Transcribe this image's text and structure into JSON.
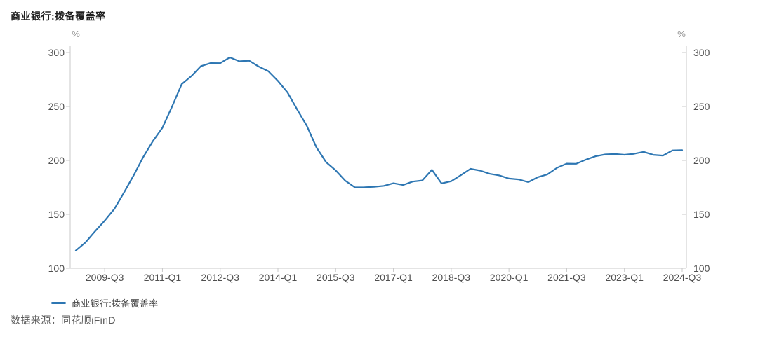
{
  "header": {
    "title": "商业银行:拨备覆盖率"
  },
  "legend": {
    "series_label": "商业银行:拨备覆盖率"
  },
  "footer": {
    "source": "数据来源：同花顺iFinD"
  },
  "colors": {
    "line": "#2d76b2",
    "axis": "#c8c8c8",
    "tick_label": "#4f4f4f",
    "unit_label": "#8f8f8f",
    "background": "#ffffff"
  },
  "chart_data": {
    "type": "line",
    "title": "商业银行:拨备覆盖率",
    "grid": false,
    "legend_position": "bottom-left",
    "y_axis_left": {
      "unit": "%",
      "range": [
        100,
        300
      ],
      "ticks": [
        300,
        250,
        200,
        150,
        100
      ]
    },
    "y_axis_right": {
      "unit": "%",
      "range": [
        100,
        300
      ],
      "ticks": [
        300,
        250,
        200,
        150,
        100
      ]
    },
    "x_axis": {
      "tick_labels": [
        "2009-Q3",
        "2011-Q1",
        "2012-Q3",
        "2014-Q1",
        "2015-Q3",
        "2017-Q1",
        "2018-Q3",
        "2020-Q1",
        "2021-Q3",
        "2023-Q1",
        "2024-Q3"
      ]
    },
    "x": [
      "2008-Q4",
      "2009-Q1",
      "2009-Q2",
      "2009-Q3",
      "2009-Q4",
      "2010-Q1",
      "2010-Q2",
      "2010-Q3",
      "2010-Q4",
      "2011-Q1",
      "2011-Q2",
      "2011-Q3",
      "2011-Q4",
      "2012-Q1",
      "2012-Q2",
      "2012-Q3",
      "2012-Q4",
      "2013-Q1",
      "2013-Q2",
      "2013-Q3",
      "2013-Q4",
      "2014-Q1",
      "2014-Q2",
      "2014-Q3",
      "2014-Q4",
      "2015-Q1",
      "2015-Q2",
      "2015-Q3",
      "2015-Q4",
      "2016-Q1",
      "2016-Q2",
      "2016-Q3",
      "2016-Q4",
      "2017-Q1",
      "2017-Q2",
      "2017-Q3",
      "2017-Q4",
      "2018-Q1",
      "2018-Q2",
      "2018-Q3",
      "2018-Q4",
      "2019-Q1",
      "2019-Q2",
      "2019-Q3",
      "2019-Q4",
      "2020-Q1",
      "2020-Q2",
      "2020-Q3",
      "2020-Q4",
      "2021-Q1",
      "2021-Q2",
      "2021-Q3",
      "2021-Q4",
      "2022-Q1",
      "2022-Q2",
      "2022-Q3",
      "2022-Q4",
      "2023-Q1",
      "2023-Q2",
      "2023-Q3",
      "2023-Q4",
      "2024-Q1",
      "2024-Q2",
      "2024-Q3"
    ],
    "series": [
      {
        "name": "商业银行:拨备覆盖率",
        "values": [
          116.4,
          123.9,
          134.3,
          144.1,
          155.0,
          170.2,
          186.0,
          203.0,
          217.7,
          230.2,
          249.8,
          270.7,
          278.1,
          287.4,
          290.2,
          290.1,
          295.5,
          291.9,
          292.5,
          287.0,
          282.7,
          273.7,
          262.9,
          247.2,
          232.1,
          212.0,
          198.4,
          190.8,
          181.2,
          175.0,
          175.1,
          175.5,
          176.4,
          178.8,
          177.2,
          180.4,
          181.4,
          191.3,
          178.7,
          180.7,
          186.3,
          192.2,
          190.6,
          187.6,
          186.1,
          183.2,
          182.4,
          179.9,
          184.5,
          187.1,
          193.2,
          197.0,
          196.9,
          200.7,
          203.8,
          205.5,
          205.9,
          205.2,
          206.1,
          207.9,
          205.1,
          204.5,
          209.3,
          209.5
        ]
      }
    ]
  }
}
